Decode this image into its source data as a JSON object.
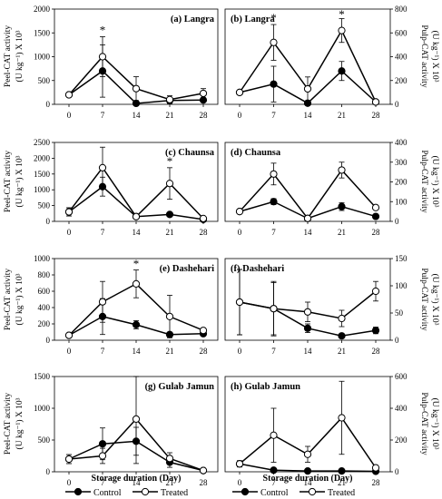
{
  "figure": {
    "xlabel": "Storage duration (Day)",
    "legend": {
      "control": "Control",
      "treated": "Treated"
    },
    "peel_ylabel_1": "Peel-CAT activity",
    "peel_ylabel_2": "(U kg⁻¹) X 10³",
    "pulp_ylabel_1": "Pulp-CAT activity",
    "pulp_ylabel_2": "(U kg⁻¹) X 10³"
  },
  "chart_data": [
    {
      "type": "line",
      "title": "(a) Langra",
      "side": "peel",
      "x": [
        0,
        7,
        14,
        21,
        28
      ],
      "ylim": [
        0,
        2000
      ],
      "yticks": [
        0,
        500,
        1000,
        1500,
        2000
      ],
      "series": [
        {
          "name": "Control",
          "values": [
            200,
            700,
            20,
            80,
            90
          ],
          "errors": [
            0,
            550,
            0,
            60,
            40
          ]
        },
        {
          "name": "Treated",
          "values": [
            200,
            1000,
            330,
            100,
            230
          ],
          "errors": [
            0,
            420,
            250,
            80,
            100
          ]
        }
      ],
      "asterisks_at": [
        7
      ]
    },
    {
      "type": "line",
      "title": "(b) Langra",
      "side": "pulp",
      "x": [
        0,
        7,
        14,
        21,
        28
      ],
      "ylim": [
        0,
        800
      ],
      "yticks": [
        0,
        200,
        400,
        600,
        800
      ],
      "series": [
        {
          "name": "Control",
          "values": [
            100,
            170,
            10,
            280,
            20
          ],
          "errors": [
            0,
            150,
            0,
            80,
            10
          ]
        },
        {
          "name": "Treated",
          "values": [
            100,
            520,
            130,
            620,
            20
          ],
          "errors": [
            0,
            150,
            100,
            100,
            10
          ]
        }
      ],
      "asterisks_at": [
        7,
        21
      ]
    },
    {
      "type": "line",
      "title": "(c) Chaunsa",
      "side": "peel",
      "x": [
        0,
        7,
        14,
        21,
        28
      ],
      "ylim": [
        0,
        2500
      ],
      "yticks": [
        0,
        500,
        1000,
        1500,
        2000,
        2500
      ],
      "series": [
        {
          "name": "Control",
          "values": [
            300,
            1100,
            150,
            220,
            60
          ],
          "errors": [
            130,
            300,
            30,
            50,
            30
          ]
        },
        {
          "name": "Treated",
          "values": [
            300,
            1700,
            150,
            1200,
            90
          ],
          "errors": [
            130,
            650,
            30,
            500,
            40
          ]
        }
      ],
      "asterisks_at": [
        21
      ]
    },
    {
      "type": "line",
      "title": "(d) Chaunsa",
      "side": "pulp",
      "x": [
        0,
        7,
        14,
        21,
        28
      ],
      "ylim": [
        0,
        400
      ],
      "yticks": [
        0,
        100,
        200,
        300,
        400
      ],
      "series": [
        {
          "name": "Control",
          "values": [
            50,
            100,
            15,
            75,
            25
          ],
          "errors": [
            0,
            15,
            0,
            20,
            8
          ]
        },
        {
          "name": "Treated",
          "values": [
            50,
            240,
            15,
            260,
            70
          ],
          "errors": [
            0,
            55,
            0,
            40,
            8
          ]
        }
      ],
      "asterisks_at": []
    },
    {
      "type": "line",
      "title": "(e) Dashehari",
      "side": "peel",
      "x": [
        0,
        7,
        14,
        21,
        28
      ],
      "ylim": [
        0,
        1000
      ],
      "yticks": [
        0,
        200,
        400,
        600,
        800,
        1000
      ],
      "series": [
        {
          "name": "Control",
          "values": [
            60,
            290,
            190,
            70,
            80
          ],
          "errors": [
            0,
            220,
            50,
            0,
            20
          ]
        },
        {
          "name": "Treated",
          "values": [
            60,
            470,
            690,
            290,
            120
          ],
          "errors": [
            0,
            250,
            170,
            260,
            20
          ]
        }
      ],
      "asterisks_at": [
        14
      ]
    },
    {
      "type": "line",
      "title": "(f) Dashehari",
      "side": "pulp",
      "x": [
        0,
        7,
        14,
        21,
        28
      ],
      "ylim": [
        0,
        150
      ],
      "yticks": [
        0,
        50,
        100,
        150
      ],
      "series": [
        {
          "name": "Control",
          "values": [
            70,
            58,
            22,
            8,
            18
          ],
          "errors": [
            60,
            48,
            8,
            0,
            6
          ]
        },
        {
          "name": "Treated",
          "values": [
            70,
            58,
            52,
            40,
            90
          ],
          "errors": [
            60,
            50,
            18,
            15,
            18
          ]
        }
      ],
      "asterisks_at": []
    },
    {
      "type": "line",
      "title": "(g) Gulab Jamun",
      "side": "peel",
      "x": [
        0,
        7,
        14,
        21,
        28
      ],
      "ylim": [
        0,
        1500
      ],
      "yticks": [
        0,
        500,
        1000,
        1500
      ],
      "series": [
        {
          "name": "Control",
          "values": [
            200,
            440,
            480,
            150,
            20
          ],
          "errors": [
            70,
            250,
            220,
            80,
            10
          ]
        },
        {
          "name": "Treated",
          "values": [
            200,
            250,
            830,
            210,
            20
          ],
          "errors": [
            70,
            120,
            700,
            90,
            10
          ]
        }
      ],
      "asterisks_at": []
    },
    {
      "type": "line",
      "title": "(h) Gulab Jamun",
      "side": "pulp",
      "x": [
        0,
        7,
        14,
        21,
        28
      ],
      "ylim": [
        0,
        600
      ],
      "yticks": [
        0,
        200,
        400,
        600
      ],
      "series": [
        {
          "name": "Control",
          "values": [
            50,
            10,
            5,
            5,
            3
          ],
          "errors": [
            10,
            5,
            0,
            0,
            0
          ]
        },
        {
          "name": "Treated",
          "values": [
            50,
            230,
            110,
            340,
            25
          ],
          "errors": [
            20,
            170,
            50,
            230,
            15
          ]
        }
      ],
      "asterisks_at": []
    }
  ]
}
